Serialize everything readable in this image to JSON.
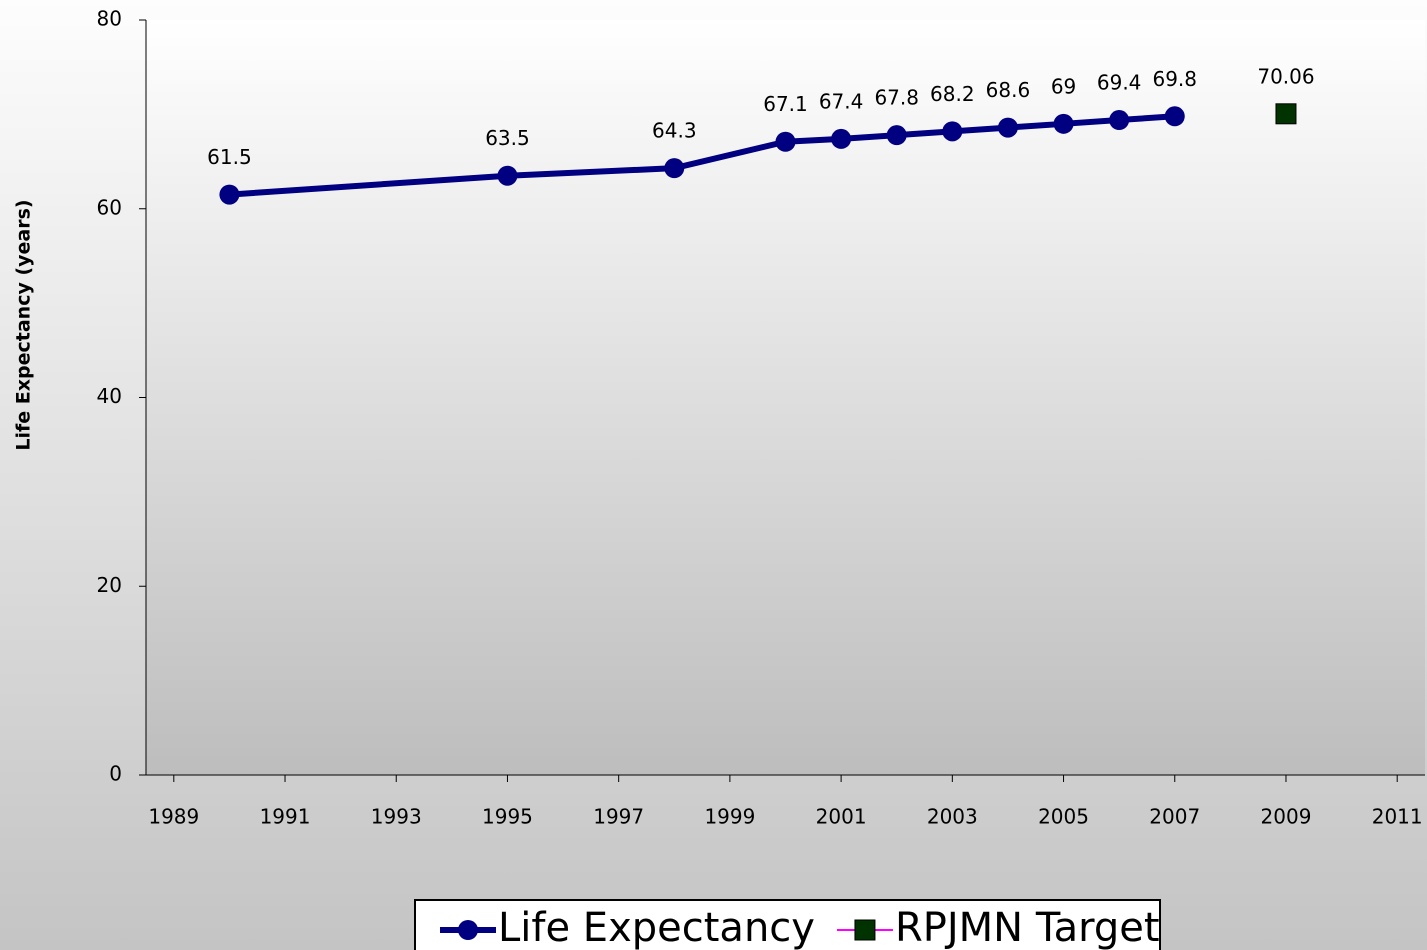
{
  "chart_data": {
    "type": "line",
    "y_label": "Life Expectancy (years)",
    "xlim": [
      1988.5,
      2011.5
    ],
    "xticks": [
      1989,
      1991,
      1993,
      1995,
      1997,
      1999,
      2001,
      2003,
      2005,
      2007,
      2009,
      2011
    ],
    "ylim": [
      0,
      80
    ],
    "yticks": [
      0,
      20,
      40,
      60,
      80
    ],
    "legend": "bottom",
    "series": [
      {
        "name": "Life Expectancy",
        "color": "#000080",
        "marker": "circle",
        "x": [
          1990,
          1995,
          1998,
          2000,
          2001,
          2002,
          2003,
          2004,
          2005,
          2006,
          2007
        ],
        "values": [
          61.5,
          63.5,
          64.3,
          67.1,
          67.4,
          67.8,
          68.2,
          68.6,
          69,
          69.4,
          69.8
        ]
      },
      {
        "name": "RPJMN Target",
        "color": "#003300",
        "line_color": "#ff00ff",
        "marker": "square",
        "x": [
          2009
        ],
        "values": [
          70.06
        ]
      }
    ]
  }
}
